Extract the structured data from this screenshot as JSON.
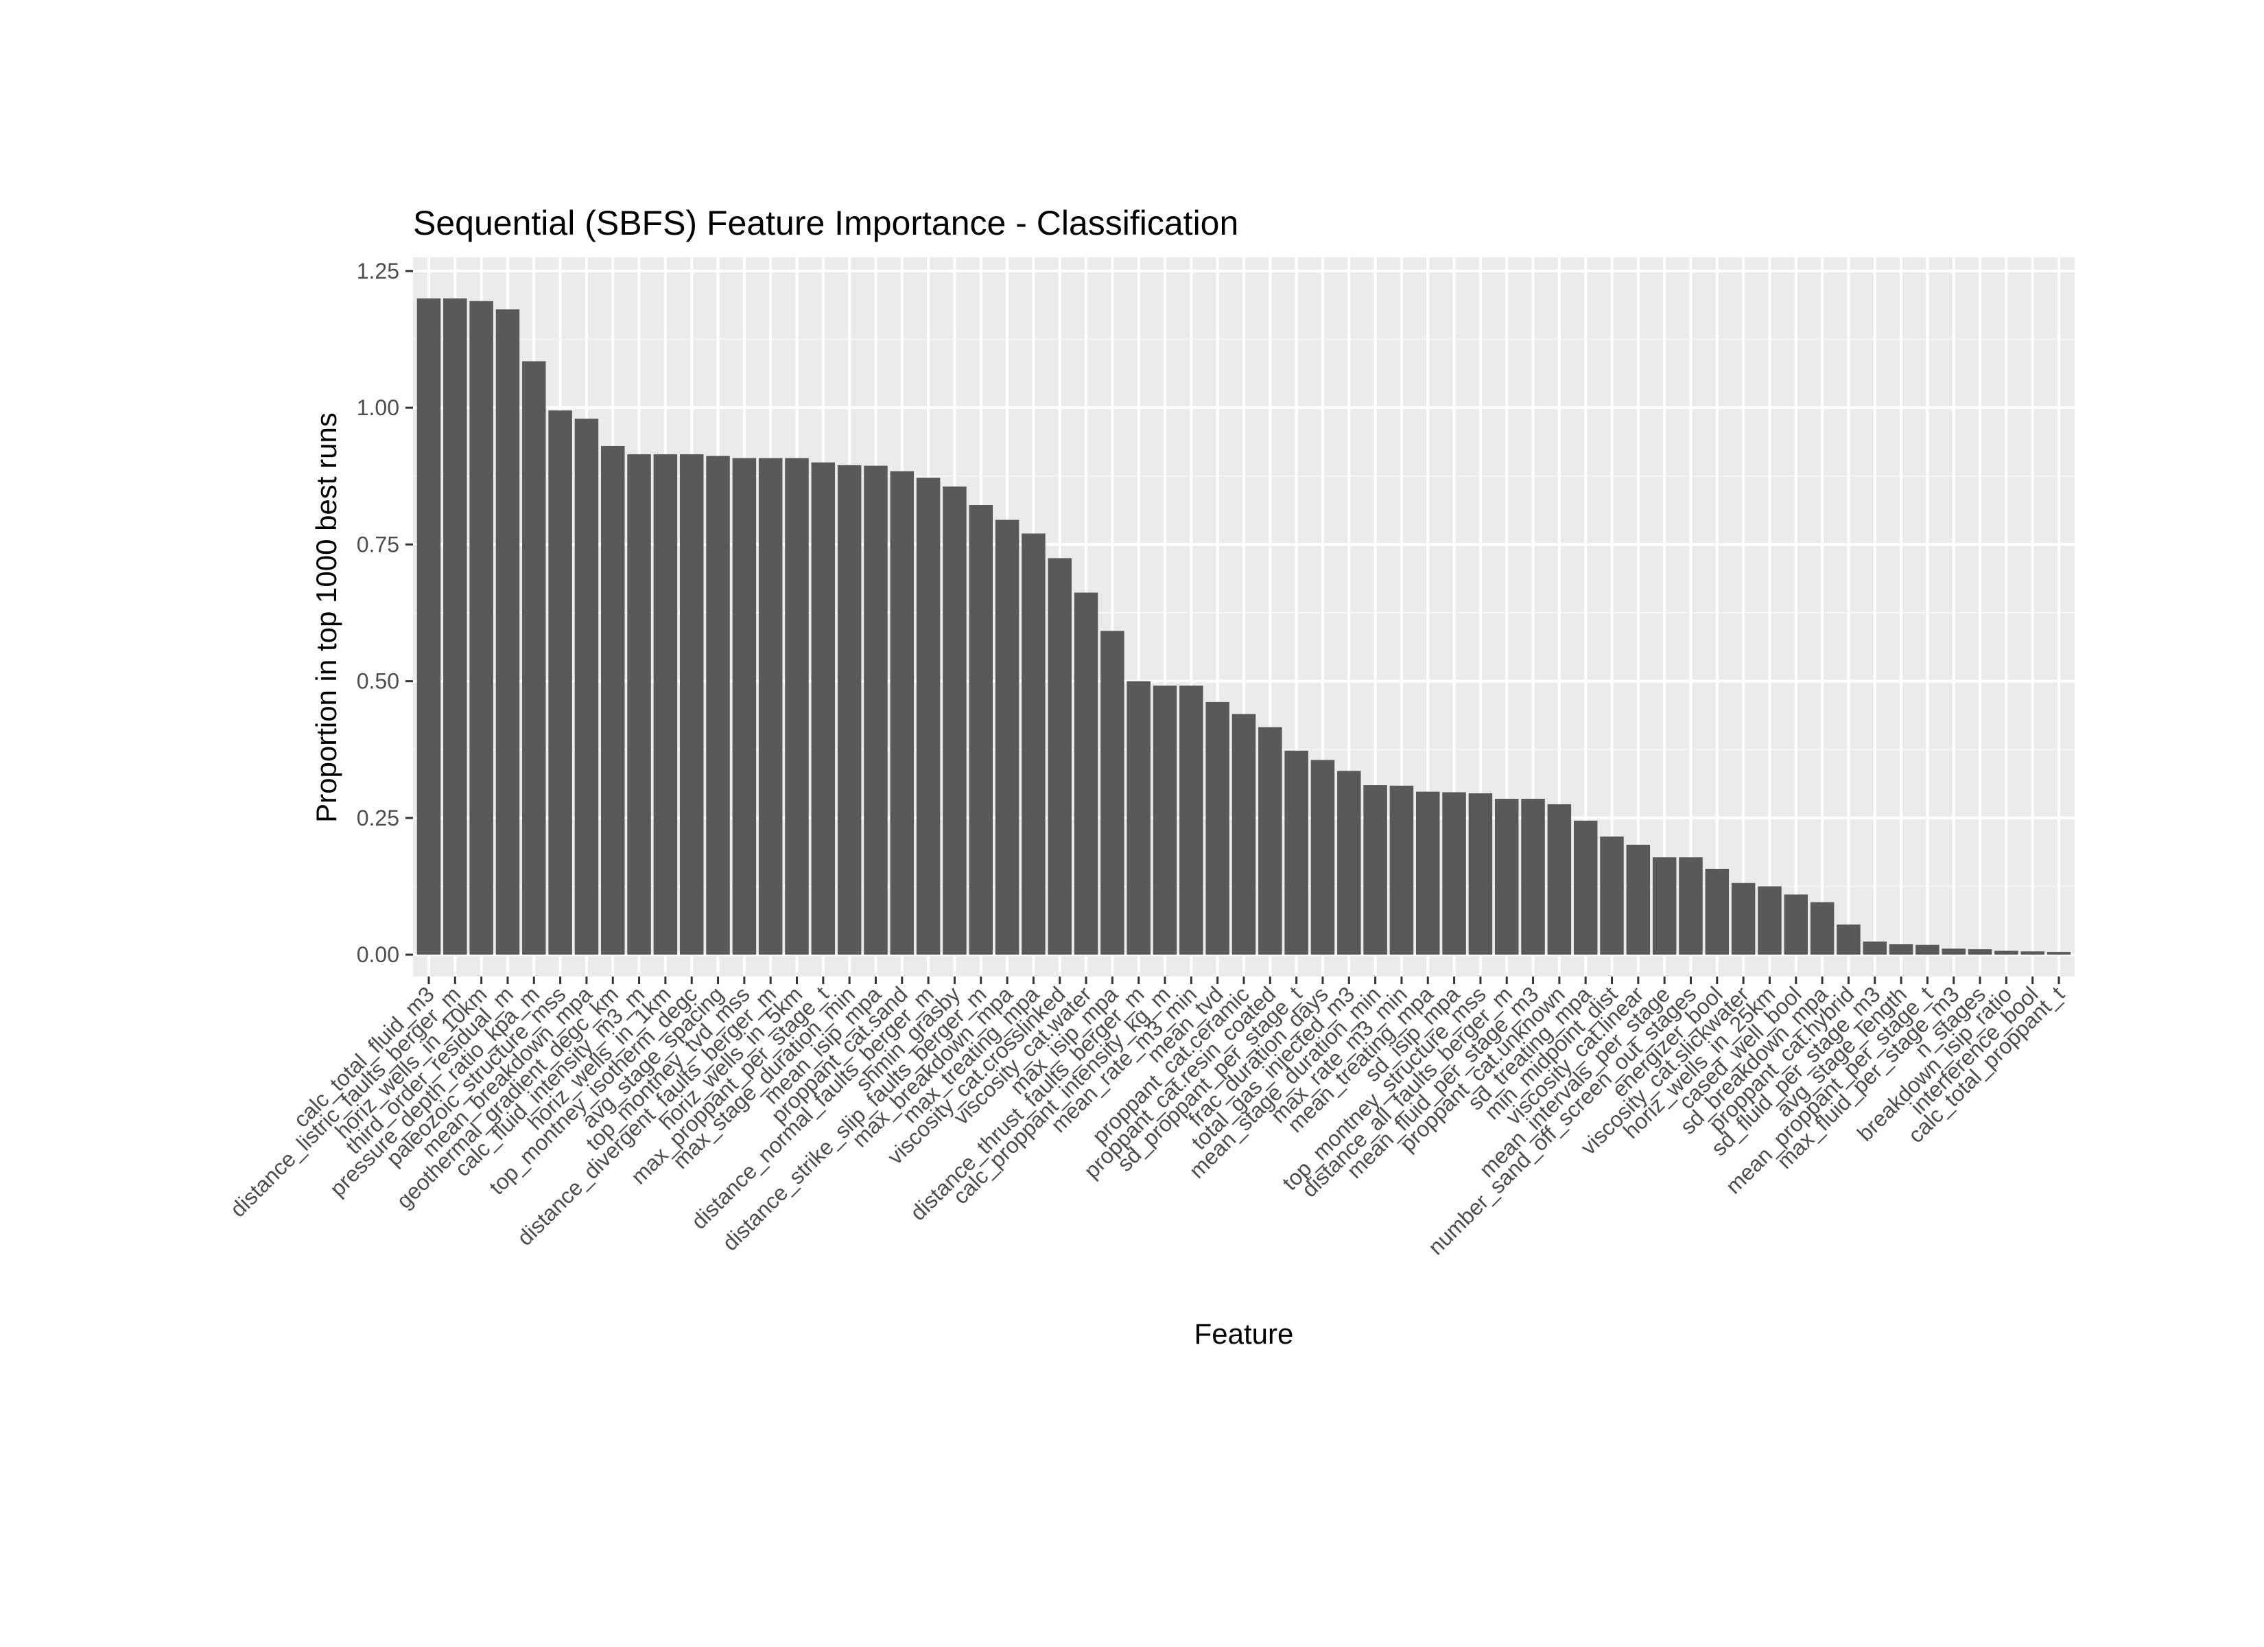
{
  "chart_data": {
    "type": "bar",
    "title": "Sequential (SBFS) Feature Importance - Classification",
    "xlabel": "Feature",
    "ylabel": "Proportion in top 1000 best runs",
    "ylim": [
      -0.04,
      1.25
    ],
    "yticks": [
      0.0,
      0.25,
      0.5,
      0.75,
      1.0,
      1.25
    ],
    "ytick_labels": [
      "0.00",
      "0.25",
      "0.50",
      "0.75",
      "1.00",
      "1.25"
    ],
    "grid": true,
    "legend": "none",
    "colors": {
      "bar": "#595959",
      "panel": "#ebebeb",
      "grid_major": "#ffffff",
      "grid_minor": "#f5f5f5",
      "tick": "#333333"
    },
    "categories": [
      "calc_total_fluid_m3",
      "distance_listric_faults_berger_m",
      "horiz_wells_in_10km",
      "third_order_residual_m",
      "pressure_depth_ratio_kpa_m",
      "paleozoic_structure_mss",
      "mean_breakdown_mpa",
      "geothermal_gradient_degc_km",
      "calc_fluid_intensity_m3_m",
      "horiz_wells_in_1km",
      "top_montney_isotherm_degc",
      "avg_stage_spacing",
      "top_montney_tvd_mss",
      "distance_divergent_faults_berger_m",
      "horiz_wells_in_5km",
      "max_proppant_per_stage_t",
      "max_stage_duration_min",
      "mean_isip_mpa",
      "proppant_cat.sand",
      "distance_normal_faults_berger_m",
      "shmin_grasby",
      "distance_strike_slip_faults_berger_m",
      "max_breakdown_mpa",
      "max_treating_mpa",
      "viscosity_cat.crosslinked",
      "viscosity_cat.water",
      "max_isip_mpa",
      "distance_thrust_faults_berger_m",
      "calc_proppant_intensity_kg_m",
      "mean_rate_m3_min",
      "mean_tvd",
      "proppant_cat.ceramic",
      "proppant_cat.resin_coated",
      "sd_proppant_per_stage_t",
      "frac_duration_days",
      "total_gas_injected_m3",
      "mean_stage_duration_min",
      "max_rate_m3_min",
      "mean_treating_mpa",
      "sd_isip_mpa",
      "top_montney_structure_mss",
      "distance_all_faults_berger_m",
      "mean_fluid_per_stage_m3",
      "proppant_cat.unknown",
      "sd_treating_mpa",
      "min_midpoint_dist",
      "viscosity_cat.linear",
      "mean_intervals_per_stage",
      "number_sand_off_screen_out_stages",
      "energizer_bool",
      "viscosity_cat.slickwater",
      "horiz_wells_in_25km",
      "cased_well_bool",
      "sd_breakdown_mpa",
      "proppant_cat.hybrid",
      "sd_fluid_per_stage_m3",
      "avg_stage_length",
      "mean_proppant_per_stage_t",
      "max_fluid_per_stage_m3",
      "n_stages",
      "breakdown_isip_ratio",
      "interference_bool",
      "calc_total_proppant_t"
    ],
    "values": [
      1.2,
      1.2,
      1.195,
      1.18,
      1.085,
      0.995,
      0.98,
      0.93,
      0.915,
      0.915,
      0.915,
      0.912,
      0.908,
      0.908,
      0.908,
      0.9,
      0.895,
      0.894,
      0.884,
      0.872,
      0.856,
      0.822,
      0.795,
      0.77,
      0.725,
      0.662,
      0.592,
      0.5,
      0.492,
      0.492,
      0.462,
      0.44,
      0.416,
      0.373,
      0.356,
      0.336,
      0.31,
      0.309,
      0.298,
      0.297,
      0.295,
      0.285,
      0.285,
      0.275,
      0.245,
      0.216,
      0.201,
      0.178,
      0.178,
      0.157,
      0.131,
      0.125,
      0.11,
      0.096,
      0.055,
      0.024,
      0.019,
      0.018,
      0.011,
      0.01,
      0.007,
      0.006,
      0.005
    ]
  }
}
